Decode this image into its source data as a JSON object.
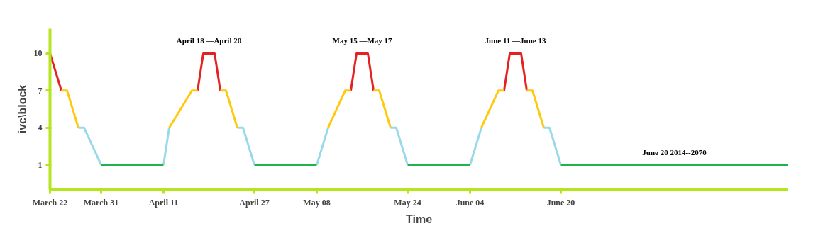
{
  "chart_data": {
    "type": "line",
    "xlabel": "Time",
    "ylabel": "ivc\\block",
    "xlim": [
      "2014-03-22",
      "2014-07-30"
    ],
    "ylim": [
      -1,
      12
    ],
    "xticks": [
      {
        "value": "2014-03-22",
        "label": "March 22"
      },
      {
        "value": "2014-03-31",
        "label": "March 31"
      },
      {
        "value": "2014-04-11",
        "label": "April 11"
      },
      {
        "value": "2014-04-27",
        "label": "April 27"
      },
      {
        "value": "2014-05-08",
        "label": "May 08"
      },
      {
        "value": "2014-05-24",
        "label": "May 24"
      },
      {
        "value": "2014-06-04",
        "label": "June 04"
      },
      {
        "value": "2014-06-20",
        "label": "June 20"
      }
    ],
    "yticks": [
      1,
      4,
      7,
      10
    ],
    "grid": false,
    "marker": "none",
    "line_style": "solid",
    "series": [
      {
        "color": "#e52222",
        "x": [
          "2014-03-22",
          "2014-03-24",
          null,
          "2014-04-17",
          "2014-04-18",
          "2014-04-20",
          "2014-04-21",
          null,
          "2014-05-14",
          "2014-05-15",
          "2014-05-17",
          "2014-05-18",
          null,
          "2014-06-10",
          "2014-06-11",
          "2014-06-13",
          "2014-06-14"
        ],
        "values": [
          10,
          7,
          null,
          7,
          10,
          10,
          7,
          null,
          7,
          10,
          10,
          7,
          null,
          7,
          10,
          10,
          7
        ]
      },
      {
        "color": "#ffc90e",
        "x": [
          "2014-03-24",
          "2014-03-25",
          "2014-03-27",
          null,
          "2014-04-12",
          "2014-04-16",
          "2014-04-17",
          null,
          "2014-04-21",
          "2014-04-22",
          "2014-04-24",
          null,
          "2014-05-10",
          "2014-05-13",
          "2014-05-14",
          null,
          "2014-05-18",
          "2014-05-19",
          "2014-05-21",
          null,
          "2014-06-06",
          "2014-06-09",
          "2014-06-10",
          null,
          "2014-06-14",
          "2014-06-15",
          "2014-06-17"
        ],
        "values": [
          7,
          7,
          4,
          null,
          4,
          7,
          7,
          null,
          7,
          7,
          4,
          null,
          4,
          7,
          7,
          null,
          7,
          7,
          4,
          null,
          4,
          7,
          7,
          null,
          7,
          7,
          4
        ]
      },
      {
        "color": "#99d9ea",
        "x": [
          "2014-03-27",
          "2014-03-28",
          "2014-03-31",
          null,
          "2014-04-11",
          "2014-04-12",
          null,
          "2014-04-24",
          "2014-04-25",
          "2014-04-27",
          null,
          "2014-05-08",
          "2014-05-10",
          null,
          "2014-05-21",
          "2014-05-22",
          "2014-05-24",
          null,
          "2014-06-04",
          "2014-06-06",
          null,
          "2014-06-17",
          "2014-06-18",
          "2014-06-20"
        ],
        "values": [
          4,
          4,
          1,
          null,
          1,
          4,
          null,
          4,
          4,
          1,
          null,
          1,
          4,
          null,
          4,
          4,
          1,
          null,
          1,
          4,
          null,
          4,
          4,
          1
        ]
      },
      {
        "color": "#22b14c",
        "x": [
          "2014-03-31",
          "2014-04-11",
          null,
          "2014-04-27",
          "2014-05-08",
          null,
          "2014-05-24",
          "2014-06-04",
          null,
          "2014-06-20",
          "2014-07-30"
        ],
        "values": [
          1,
          1,
          null,
          1,
          1,
          null,
          1,
          1,
          null,
          1,
          1
        ]
      }
    ],
    "annotations": [
      {
        "text": "April 18 —April 20",
        "x": "2014-04-19",
        "y": 10
      },
      {
        "text": "May 15 —May 17",
        "x": "2014-05-16",
        "y": 10
      },
      {
        "text": "June 11 —June 13",
        "x": "2014-06-12",
        "y": 10
      },
      {
        "text": "June 20 2014--2070",
        "x": "2014-07-10",
        "y": 1
      }
    ]
  }
}
